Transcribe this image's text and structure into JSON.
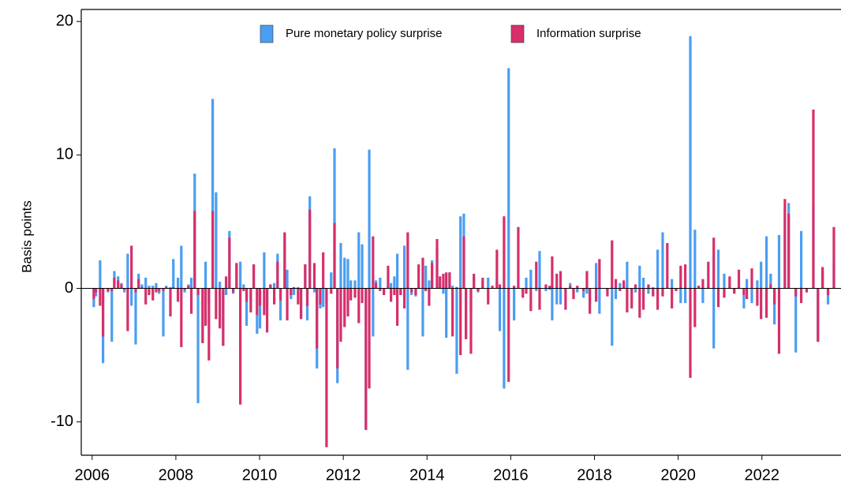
{
  "chart_data": {
    "type": "bar",
    "y_label": "Basis points",
    "x": [
      2006.04,
      2006.09,
      2006.19,
      2006.26,
      2006.38,
      2006.47,
      2006.53,
      2006.62,
      2006.7,
      2006.77,
      2006.85,
      2006.94,
      2007.04,
      2007.11,
      2007.19,
      2007.28,
      2007.36,
      2007.45,
      2007.53,
      2007.6,
      2007.7,
      2007.77,
      2007.87,
      2007.94,
      2008.05,
      2008.13,
      2008.21,
      2008.3,
      2008.37,
      2008.45,
      2008.53,
      2008.64,
      2008.71,
      2008.79,
      2008.88,
      2008.96,
      2009.05,
      2009.13,
      2009.2,
      2009.28,
      2009.37,
      2009.45,
      2009.54,
      2009.62,
      2009.69,
      2009.79,
      2009.86,
      2009.94,
      2010.01,
      2010.11,
      2010.18,
      2010.26,
      2010.35,
      2010.43,
      2010.5,
      2010.6,
      2010.66,
      2010.75,
      2010.82,
      2010.92,
      2010.99,
      2011.09,
      2011.14,
      2011.2,
      2011.31,
      2011.37,
      2011.45,
      2011.52,
      2011.6,
      2011.71,
      2011.79,
      2011.86,
      2011.94,
      2012.03,
      2012.11,
      2012.18,
      2012.28,
      2012.37,
      2012.45,
      2012.54,
      2012.62,
      2012.71,
      2012.78,
      2012.88,
      2012.97,
      2013.07,
      2013.14,
      2013.22,
      2013.29,
      2013.37,
      2013.46,
      2013.54,
      2013.63,
      2013.73,
      2013.8,
      2013.9,
      2013.97,
      2014.05,
      2014.12,
      2014.24,
      2014.31,
      2014.39,
      2014.46,
      2014.54,
      2014.61,
      2014.71,
      2014.8,
      2014.88,
      2014.93,
      2015.05,
      2015.12,
      2015.22,
      2015.33,
      2015.46,
      2015.56,
      2015.67,
      2015.74,
      2015.84,
      2015.95,
      2016.08,
      2016.18,
      2016.29,
      2016.37,
      2016.48,
      2016.61,
      2016.69,
      2016.84,
      2016.93,
      2016.99,
      2017.1,
      2017.19,
      2017.31,
      2017.42,
      2017.5,
      2017.59,
      2017.74,
      2017.82,
      2017.89,
      2018.04,
      2018.12,
      2018.31,
      2018.42,
      2018.51,
      2018.61,
      2018.7,
      2018.78,
      2018.89,
      2018.98,
      2019.08,
      2019.17,
      2019.29,
      2019.4,
      2019.51,
      2019.63,
      2019.74,
      2019.85,
      2019.95,
      2020.06,
      2020.17,
      2020.29,
      2020.4,
      2020.49,
      2020.59,
      2020.72,
      2020.85,
      2020.96,
      2021.1,
      2021.23,
      2021.34,
      2021.45,
      2021.57,
      2021.64,
      2021.76,
      2021.89,
      2021.98,
      2022.11,
      2022.21,
      2022.3,
      2022.41,
      2022.55,
      2022.64,
      2022.81,
      2022.94,
      2023.07,
      2023.23,
      2023.34,
      2023.45,
      2023.58,
      2023.72
    ],
    "series": [
      {
        "name": "Pure monetary policy surprise",
        "color": "#4a9ef2",
        "values": [
          -1.4,
          -0.6,
          2.1,
          -5.6,
          -0.3,
          -4.0,
          1.3,
          0.9,
          0.4,
          -0.3,
          2.6,
          -1.3,
          -4.2,
          1.1,
          0.3,
          0.8,
          0.2,
          0.2,
          0.4,
          -0.4,
          -3.6,
          0.2,
          0.1,
          2.2,
          0.8,
          3.2,
          -0.3,
          0.3,
          0.8,
          8.6,
          -8.6,
          -4.1,
          2.0,
          -1.3,
          14.2,
          7.2,
          0.5,
          -4.3,
          -0.5,
          4.3,
          -0.4,
          1.9,
          2.0,
          0.3,
          -2.8,
          -1.5,
          1.8,
          -3.4,
          -3.0,
          2.7,
          -1.5,
          0.3,
          0.4,
          2.6,
          -2.4,
          4.2,
          1.4,
          -0.8,
          -0.5,
          0.1,
          -2.2,
          1.8,
          -2.4,
          6.9,
          -0.3,
          -6.0,
          -1.5,
          -1.4,
          -1.1,
          1.2,
          10.5,
          -7.1,
          3.4,
          2.3,
          2.2,
          0.6,
          0.6,
          4.2,
          3.3,
          -10.6,
          10.4,
          -3.6,
          0.6,
          0.8,
          -0.3,
          0.2,
          0.4,
          0.9,
          2.6,
          -0.5,
          3.2,
          -6.1,
          -0.5,
          -0.6,
          0.3,
          -3.6,
          1.7,
          0.6,
          2.1,
          3.1,
          0.4,
          -0.4,
          -3.7,
          1.2,
          0.2,
          -6.4,
          5.4,
          5.6,
          -3.8,
          -1.9,
          0.9,
          -0.3,
          0.5,
          0.8,
          0.1,
          0.5,
          -3.2,
          -7.5,
          16.5,
          -2.4,
          0.2,
          -0.2,
          0.8,
          1.4,
          -0.2,
          2.8,
          -0.2,
          -0.1,
          -2.4,
          -1.2,
          -1.2,
          -0.2,
          0.4,
          -0.2,
          -0.3,
          -0.7,
          -0.4,
          -1.2,
          1.9,
          -1.9,
          -0.2,
          -4.3,
          -0.8,
          0.4,
          0.3,
          2.0,
          -0.2,
          -0.3,
          1.7,
          0.8,
          -0.4,
          0.1,
          2.9,
          4.2,
          0.1,
          0.7,
          -0.2,
          -1.1,
          -1.1,
          18.9,
          4.4,
          0.1,
          -1.1,
          0.2,
          -4.5,
          2.9,
          1.1,
          0.2,
          -0.3,
          0.1,
          -1.5,
          0.7,
          -1.1,
          0.6,
          2.0,
          3.9,
          1.1,
          -2.7,
          4.0,
          5.9,
          6.4,
          -4.8,
          4.3,
          0.0,
          6.2,
          -4.0,
          1.3,
          -1.2,
          1.9
        ]
      },
      {
        "name": "Information surprise",
        "color": "#d62f6b",
        "values": [
          -0.8,
          -0.3,
          -1.3,
          -3.6,
          -0.2,
          -0.2,
          0.8,
          0.6,
          0.3,
          -0.1,
          -3.2,
          3.2,
          -0.3,
          0.7,
          0.1,
          -1.2,
          -0.5,
          -0.9,
          -0.3,
          -0.2,
          -0.2,
          0.1,
          -2.1,
          0.1,
          -1.0,
          -4.4,
          -0.1,
          0.2,
          -1.9,
          5.8,
          -0.5,
          -4.1,
          -2.8,
          -5.4,
          5.8,
          -2.3,
          -3.0,
          -4.3,
          0.9,
          3.8,
          -0.3,
          1.9,
          -8.7,
          -0.2,
          -1.0,
          -1.8,
          1.8,
          -2.0,
          -1.3,
          -2.0,
          -3.3,
          0.3,
          -1.2,
          2.0,
          -0.9,
          4.2,
          -2.4,
          -0.5,
          0.1,
          -1.2,
          -2.3,
          1.8,
          -1.3,
          5.9,
          1.9,
          -4.5,
          -1.2,
          2.7,
          -11.9,
          -0.4,
          4.9,
          -6.0,
          -4.0,
          -2.9,
          -2.1,
          -0.9,
          -0.7,
          -2.6,
          -1.1,
          -10.6,
          -7.5,
          3.9,
          0.4,
          -0.2,
          -0.5,
          1.7,
          -1.0,
          -0.5,
          -2.8,
          -0.5,
          -1.5,
          4.2,
          -0.3,
          -0.5,
          1.8,
          2.3,
          -0.2,
          -1.3,
          1.9,
          3.7,
          0.9,
          1.1,
          1.2,
          1.2,
          -3.6,
          0.1,
          -5.0,
          3.9,
          -3.8,
          -4.9,
          1.1,
          -0.2,
          0.8,
          -1.2,
          0.2,
          2.9,
          0.3,
          5.4,
          -7.0,
          0.2,
          4.6,
          -0.7,
          -0.4,
          -1.7,
          2.0,
          -1.6,
          0.3,
          0.2,
          2.4,
          1.1,
          1.3,
          -1.6,
          0.2,
          -0.8,
          0.2,
          -0.2,
          1.3,
          -1.9,
          -1.0,
          2.2,
          -0.6,
          3.6,
          0.7,
          -0.2,
          0.6,
          -1.8,
          -1.5,
          0.3,
          -2.2,
          -1.6,
          0.3,
          -0.6,
          -1.6,
          -0.6,
          3.4,
          -1.5,
          -0.2,
          1.7,
          1.8,
          -6.7,
          -2.9,
          0.2,
          0.7,
          2.0,
          3.8,
          -1.4,
          -0.7,
          0.9,
          -0.4,
          1.4,
          -0.5,
          -0.8,
          1.5,
          -1.3,
          -2.3,
          -2.2,
          0.3,
          -1.2,
          -4.9,
          6.7,
          5.6,
          -0.6,
          -1.1,
          -0.3,
          13.4,
          -4.0,
          1.6,
          -0.5,
          4.6
        ]
      }
    ],
    "xlim": [
      2005.74,
      2023.89
    ],
    "xticks": [
      2006,
      2008,
      2010,
      2012,
      2014,
      2016,
      2018,
      2020,
      2022
    ],
    "ylim": [
      -12.5,
      20.9
    ],
    "yticks": [
      -10,
      0,
      10,
      20
    ],
    "legend": "top"
  }
}
